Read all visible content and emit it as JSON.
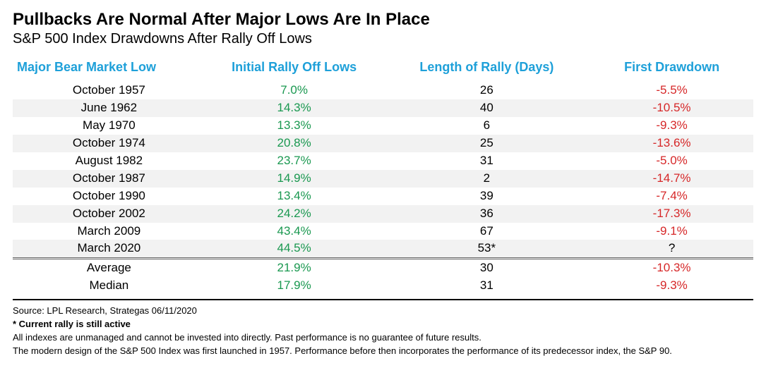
{
  "colors": {
    "header_blue": "#1ea0d9",
    "rally_green": "#1a9850",
    "drawdown_red": "#d62728",
    "text": "#000000",
    "stripe": "#f2f2f2"
  },
  "title": "Pullbacks Are Normal After Major Lows Are In Place",
  "subtitle": "S&P 500 Index Drawdowns After Rally Off Lows",
  "columns": [
    {
      "key": "low",
      "label": "Major Bear Market Low",
      "width": "26%",
      "align": "center"
    },
    {
      "key": "rally",
      "label": "Initial Rally Off Lows",
      "width": "24%",
      "align": "center"
    },
    {
      "key": "days",
      "label": "Length of Rally (Days)",
      "width": "28%",
      "align": "center"
    },
    {
      "key": "dd",
      "label": "First Drawdown",
      "width": "22%",
      "align": "center"
    }
  ],
  "rows": [
    {
      "low": "October 1957",
      "rally": "7.0%",
      "days": "26",
      "dd": "-5.5%"
    },
    {
      "low": "June 1962",
      "rally": "14.3%",
      "days": "40",
      "dd": "-10.5%"
    },
    {
      "low": "May 1970",
      "rally": "13.3%",
      "days": "6",
      "dd": "-9.3%"
    },
    {
      "low": "October 1974",
      "rally": "20.8%",
      "days": "25",
      "dd": "-13.6%"
    },
    {
      "low": "August 1982",
      "rally": "23.7%",
      "days": "31",
      "dd": "-5.0%"
    },
    {
      "low": "October 1987",
      "rally": "14.9%",
      "days": "2",
      "dd": "-14.7%"
    },
    {
      "low": "October 1990",
      "rally": "13.4%",
      "days": "39",
      "dd": "-7.4%"
    },
    {
      "low": "October 2002",
      "rally": "24.2%",
      "days": "36",
      "dd": "-17.3%"
    },
    {
      "low": "March 2009",
      "rally": "43.4%",
      "days": "67",
      "dd": "-9.1%"
    },
    {
      "low": "March 2020",
      "rally": "44.5%",
      "days": "53*",
      "dd": "?"
    }
  ],
  "summary": [
    {
      "low": "Average",
      "rally": "21.9%",
      "days": "30",
      "dd": "-10.3%"
    },
    {
      "low": "Median",
      "rally": "17.9%",
      "days": "31",
      "dd": "-9.3%"
    }
  ],
  "footnotes": {
    "source": "Source: LPL Research, Strategas 06/11/2020",
    "note_bold": "* Current rally is still active",
    "note1": "All indexes are unmanaged and cannot be invested into directly. Past performance is no guarantee of future results.",
    "note2": "The modern design of the S&P 500 Index was first launched in 1957. Performance before then incorporates the performance of its predecessor index, the S&P 90."
  }
}
